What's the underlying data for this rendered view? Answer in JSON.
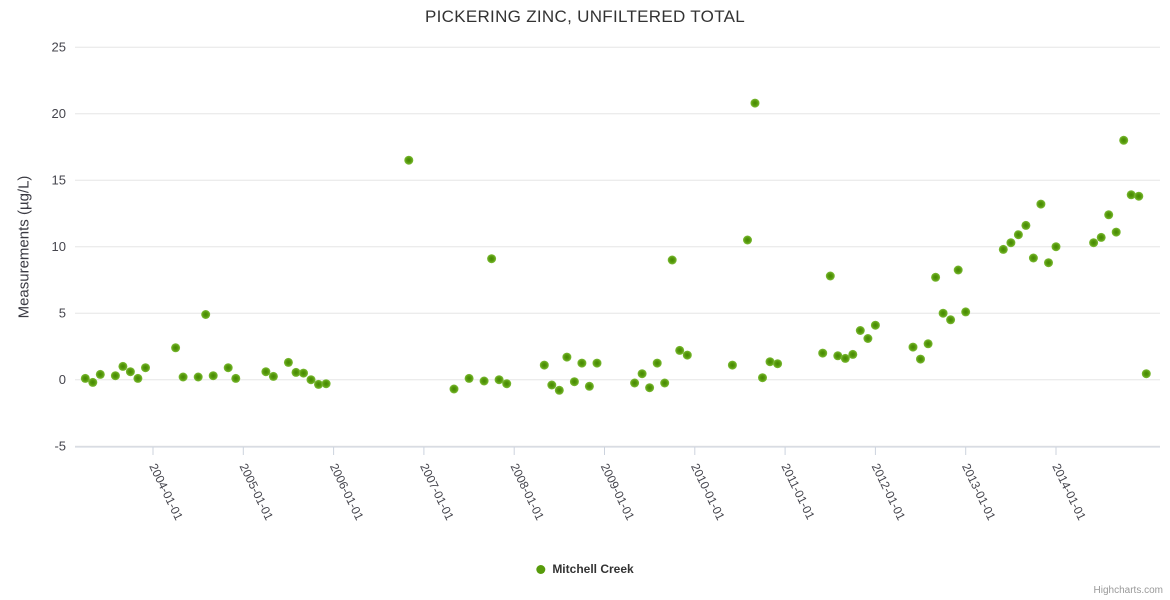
{
  "credits": "Highcharts.com",
  "colors": {
    "marker_center": "#458605",
    "marker_mid": "#579b0b",
    "marker_edge": "#7ebc39",
    "legend_marker": "#579b0b",
    "grid": "#e6e6e6",
    "axis_line": "#ccd3de",
    "tick_label": "#45454d",
    "title": "#333333",
    "credits": "#999999"
  },
  "chart_data": {
    "type": "scatter",
    "title": "PICKERING ZINC, UNFILTERED TOTAL",
    "xlabel": "",
    "ylabel": "Measurements (µg/L)",
    "ylim": [
      -5,
      25
    ],
    "yticks": [
      "-5",
      "0",
      "5",
      "10",
      "15",
      "20",
      "25"
    ],
    "xticks": [
      "2004-01-01",
      "2005-01-01",
      "2006-01-01",
      "2007-01-01",
      "2008-01-01",
      "2009-01-01",
      "2010-01-01",
      "2011-01-01",
      "2012-01-01",
      "2013-01-01",
      "2014-01-01"
    ],
    "grid": true,
    "legend_position": "bottom-center",
    "series": [
      {
        "name": "Mitchell Creek",
        "points": [
          [
            "2003-04",
            0.1
          ],
          [
            "2003-05",
            -0.2
          ],
          [
            "2003-06",
            0.4
          ],
          [
            "2003-08",
            0.3
          ],
          [
            "2003-09",
            1.0
          ],
          [
            "2003-10",
            0.6
          ],
          [
            "2003-11",
            0.1
          ],
          [
            "2003-12",
            0.9
          ],
          [
            "2004-04",
            2.4
          ],
          [
            "2004-05",
            0.2
          ],
          [
            "2004-07",
            0.2
          ],
          [
            "2004-08",
            4.9
          ],
          [
            "2004-09",
            0.3
          ],
          [
            "2004-11",
            0.9
          ],
          [
            "2004-12",
            0.1
          ],
          [
            "2005-04",
            0.6
          ],
          [
            "2005-05",
            0.25
          ],
          [
            "2005-07",
            1.3
          ],
          [
            "2005-08",
            0.55
          ],
          [
            "2005-09",
            0.5
          ],
          [
            "2005-10",
            0.0
          ],
          [
            "2005-11",
            -0.35
          ],
          [
            "2005-12",
            -0.3
          ],
          [
            "2006-11",
            16.5
          ],
          [
            "2007-05",
            -0.7
          ],
          [
            "2007-07",
            0.1
          ],
          [
            "2007-09",
            -0.1
          ],
          [
            "2007-10",
            9.1
          ],
          [
            "2007-11",
            0.0
          ],
          [
            "2007-12",
            -0.3
          ],
          [
            "2008-05",
            1.1
          ],
          [
            "2008-06",
            -0.4
          ],
          [
            "2008-07",
            -0.8
          ],
          [
            "2008-08",
            1.7
          ],
          [
            "2008-09",
            -0.15
          ],
          [
            "2008-10",
            1.25
          ],
          [
            "2008-11",
            -0.5
          ],
          [
            "2008-12",
            1.25
          ],
          [
            "2009-05",
            -0.25
          ],
          [
            "2009-06",
            0.45
          ],
          [
            "2009-07",
            -0.6
          ],
          [
            "2009-08",
            1.25
          ],
          [
            "2009-09",
            -0.25
          ],
          [
            "2009-10",
            9.0
          ],
          [
            "2009-11",
            2.2
          ],
          [
            "2009-12",
            1.85
          ],
          [
            "2010-06",
            1.1
          ],
          [
            "2010-08",
            10.5
          ],
          [
            "2010-09",
            20.8
          ],
          [
            "2010-10",
            0.15
          ],
          [
            "2010-11",
            1.35
          ],
          [
            "2010-12",
            1.2
          ],
          [
            "2011-06",
            2.0
          ],
          [
            "2011-07",
            7.8
          ],
          [
            "2011-08",
            1.8
          ],
          [
            "2011-09",
            1.6
          ],
          [
            "2011-10",
            1.9
          ],
          [
            "2011-11",
            3.7
          ],
          [
            "2011-12",
            3.1
          ],
          [
            "2012-01",
            4.1
          ],
          [
            "2012-06",
            2.45
          ],
          [
            "2012-07",
            1.55
          ],
          [
            "2012-08",
            2.7
          ],
          [
            "2012-09",
            7.7
          ],
          [
            "2012-10",
            5.0
          ],
          [
            "2012-11",
            4.5
          ],
          [
            "2012-12",
            8.25
          ],
          [
            "2013-01",
            5.1
          ],
          [
            "2013-06",
            9.8
          ],
          [
            "2013-07",
            10.3
          ],
          [
            "2013-08",
            10.9
          ],
          [
            "2013-09",
            11.6
          ],
          [
            "2013-10",
            9.15
          ],
          [
            "2013-11",
            13.2
          ],
          [
            "2013-12",
            8.8
          ],
          [
            "2014-01",
            10.0
          ],
          [
            "2014-06",
            10.3
          ],
          [
            "2014-07",
            10.7
          ],
          [
            "2014-08",
            12.4
          ],
          [
            "2014-09",
            11.1
          ],
          [
            "2014-10",
            18.0
          ],
          [
            "2014-11",
            13.9
          ],
          [
            "2014-12",
            13.8
          ],
          [
            "2015-01",
            0.45
          ]
        ]
      }
    ]
  }
}
